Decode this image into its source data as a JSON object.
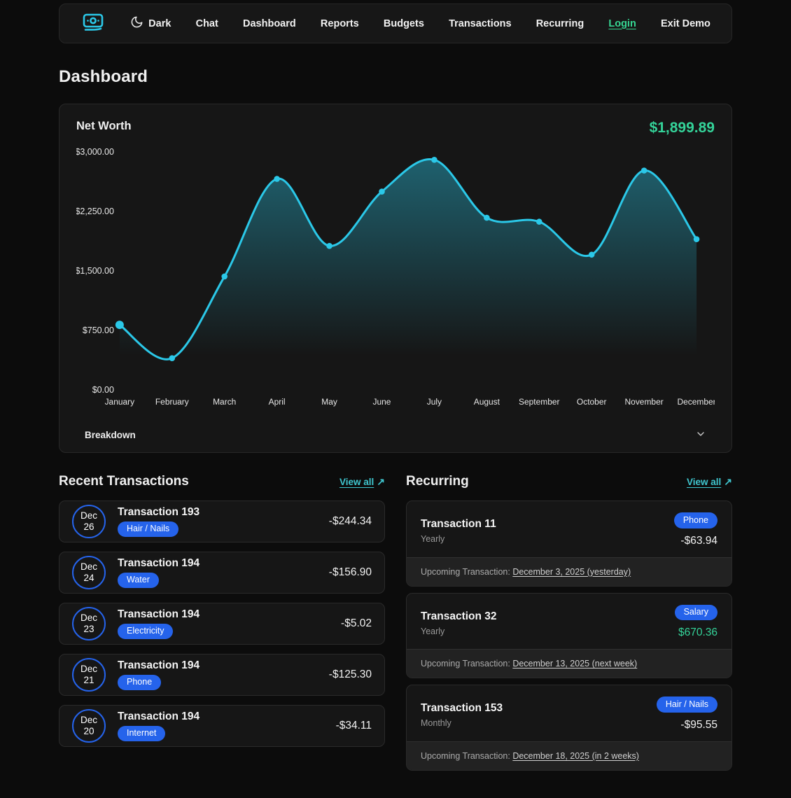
{
  "nav": {
    "theme_label": "Dark",
    "items": [
      {
        "label": "Chat"
      },
      {
        "label": "Dashboard"
      },
      {
        "label": "Reports"
      },
      {
        "label": "Budgets"
      },
      {
        "label": "Transactions"
      },
      {
        "label": "Recurring"
      }
    ],
    "login_label": "Login",
    "exit_label": "Exit Demo"
  },
  "page": {
    "title": "Dashboard"
  },
  "net_worth": {
    "title": "Net Worth",
    "value": "$1,899.89",
    "breakdown_label": "Breakdown"
  },
  "chart_data": {
    "type": "area",
    "title": "Net Worth",
    "categories": [
      "January",
      "February",
      "March",
      "April",
      "May",
      "June",
      "July",
      "August",
      "September",
      "October",
      "November",
      "December"
    ],
    "values": [
      820,
      400,
      1430,
      2660,
      1815,
      2500,
      2900,
      2170,
      2120,
      1705,
      2765,
      1899.89
    ],
    "xlabel": "",
    "ylabel": "",
    "ylim": [
      0,
      3000
    ],
    "yticks": [
      {
        "value": 0,
        "label": "$0.00"
      },
      {
        "value": 750,
        "label": "$750.00"
      },
      {
        "value": 1500,
        "label": "$1,500.00"
      },
      {
        "value": 2250,
        "label": "$2,250.00"
      },
      {
        "value": 3000,
        "label": "$3,000.00"
      }
    ],
    "grid": false,
    "legend": false,
    "line_color": "#2bc8e8",
    "fill_top_color": "rgba(43,200,232,0.42)",
    "fill_bottom_color": "rgba(43,200,232,0)"
  },
  "recent": {
    "title": "Recent Transactions",
    "view_all_label": "View all",
    "view_all_icon": "↗",
    "items": [
      {
        "month": "Dec",
        "day": "26",
        "title": "Transaction 193",
        "category": "Hair / Nails",
        "amount": "-$244.34"
      },
      {
        "month": "Dec",
        "day": "24",
        "title": "Transaction 194",
        "category": "Water",
        "amount": "-$156.90"
      },
      {
        "month": "Dec",
        "day": "23",
        "title": "Transaction 194",
        "category": "Electricity",
        "amount": "-$5.02"
      },
      {
        "month": "Dec",
        "day": "21",
        "title": "Transaction 194",
        "category": "Phone",
        "amount": "-$125.30"
      },
      {
        "month": "Dec",
        "day": "20",
        "title": "Transaction 194",
        "category": "Internet",
        "amount": "-$34.11"
      }
    ]
  },
  "recurring": {
    "title": "Recurring",
    "view_all_label": "View all",
    "view_all_icon": "↗",
    "upcoming_label": "Upcoming Transaction:",
    "items": [
      {
        "title": "Transaction 11",
        "frequency": "Yearly",
        "category": "Phone",
        "amount": "-$63.94",
        "positive": false,
        "upcoming_date": "December 3, 2025 (yesterday)"
      },
      {
        "title": "Transaction 32",
        "frequency": "Yearly",
        "category": "Salary",
        "amount": "$670.36",
        "positive": true,
        "upcoming_date": "December 13, 2025 (next week)"
      },
      {
        "title": "Transaction 153",
        "frequency": "Monthly",
        "category": "Hair / Nails",
        "amount": "-$95.55",
        "positive": false,
        "upcoming_date": "December 18, 2025 (in 2 weeks)"
      }
    ]
  },
  "colors": {
    "accent_blue": "#2563eb",
    "accent_green": "#34d399",
    "accent_cyan": "#2bc8e8",
    "link_teal": "#3fc6cf"
  }
}
